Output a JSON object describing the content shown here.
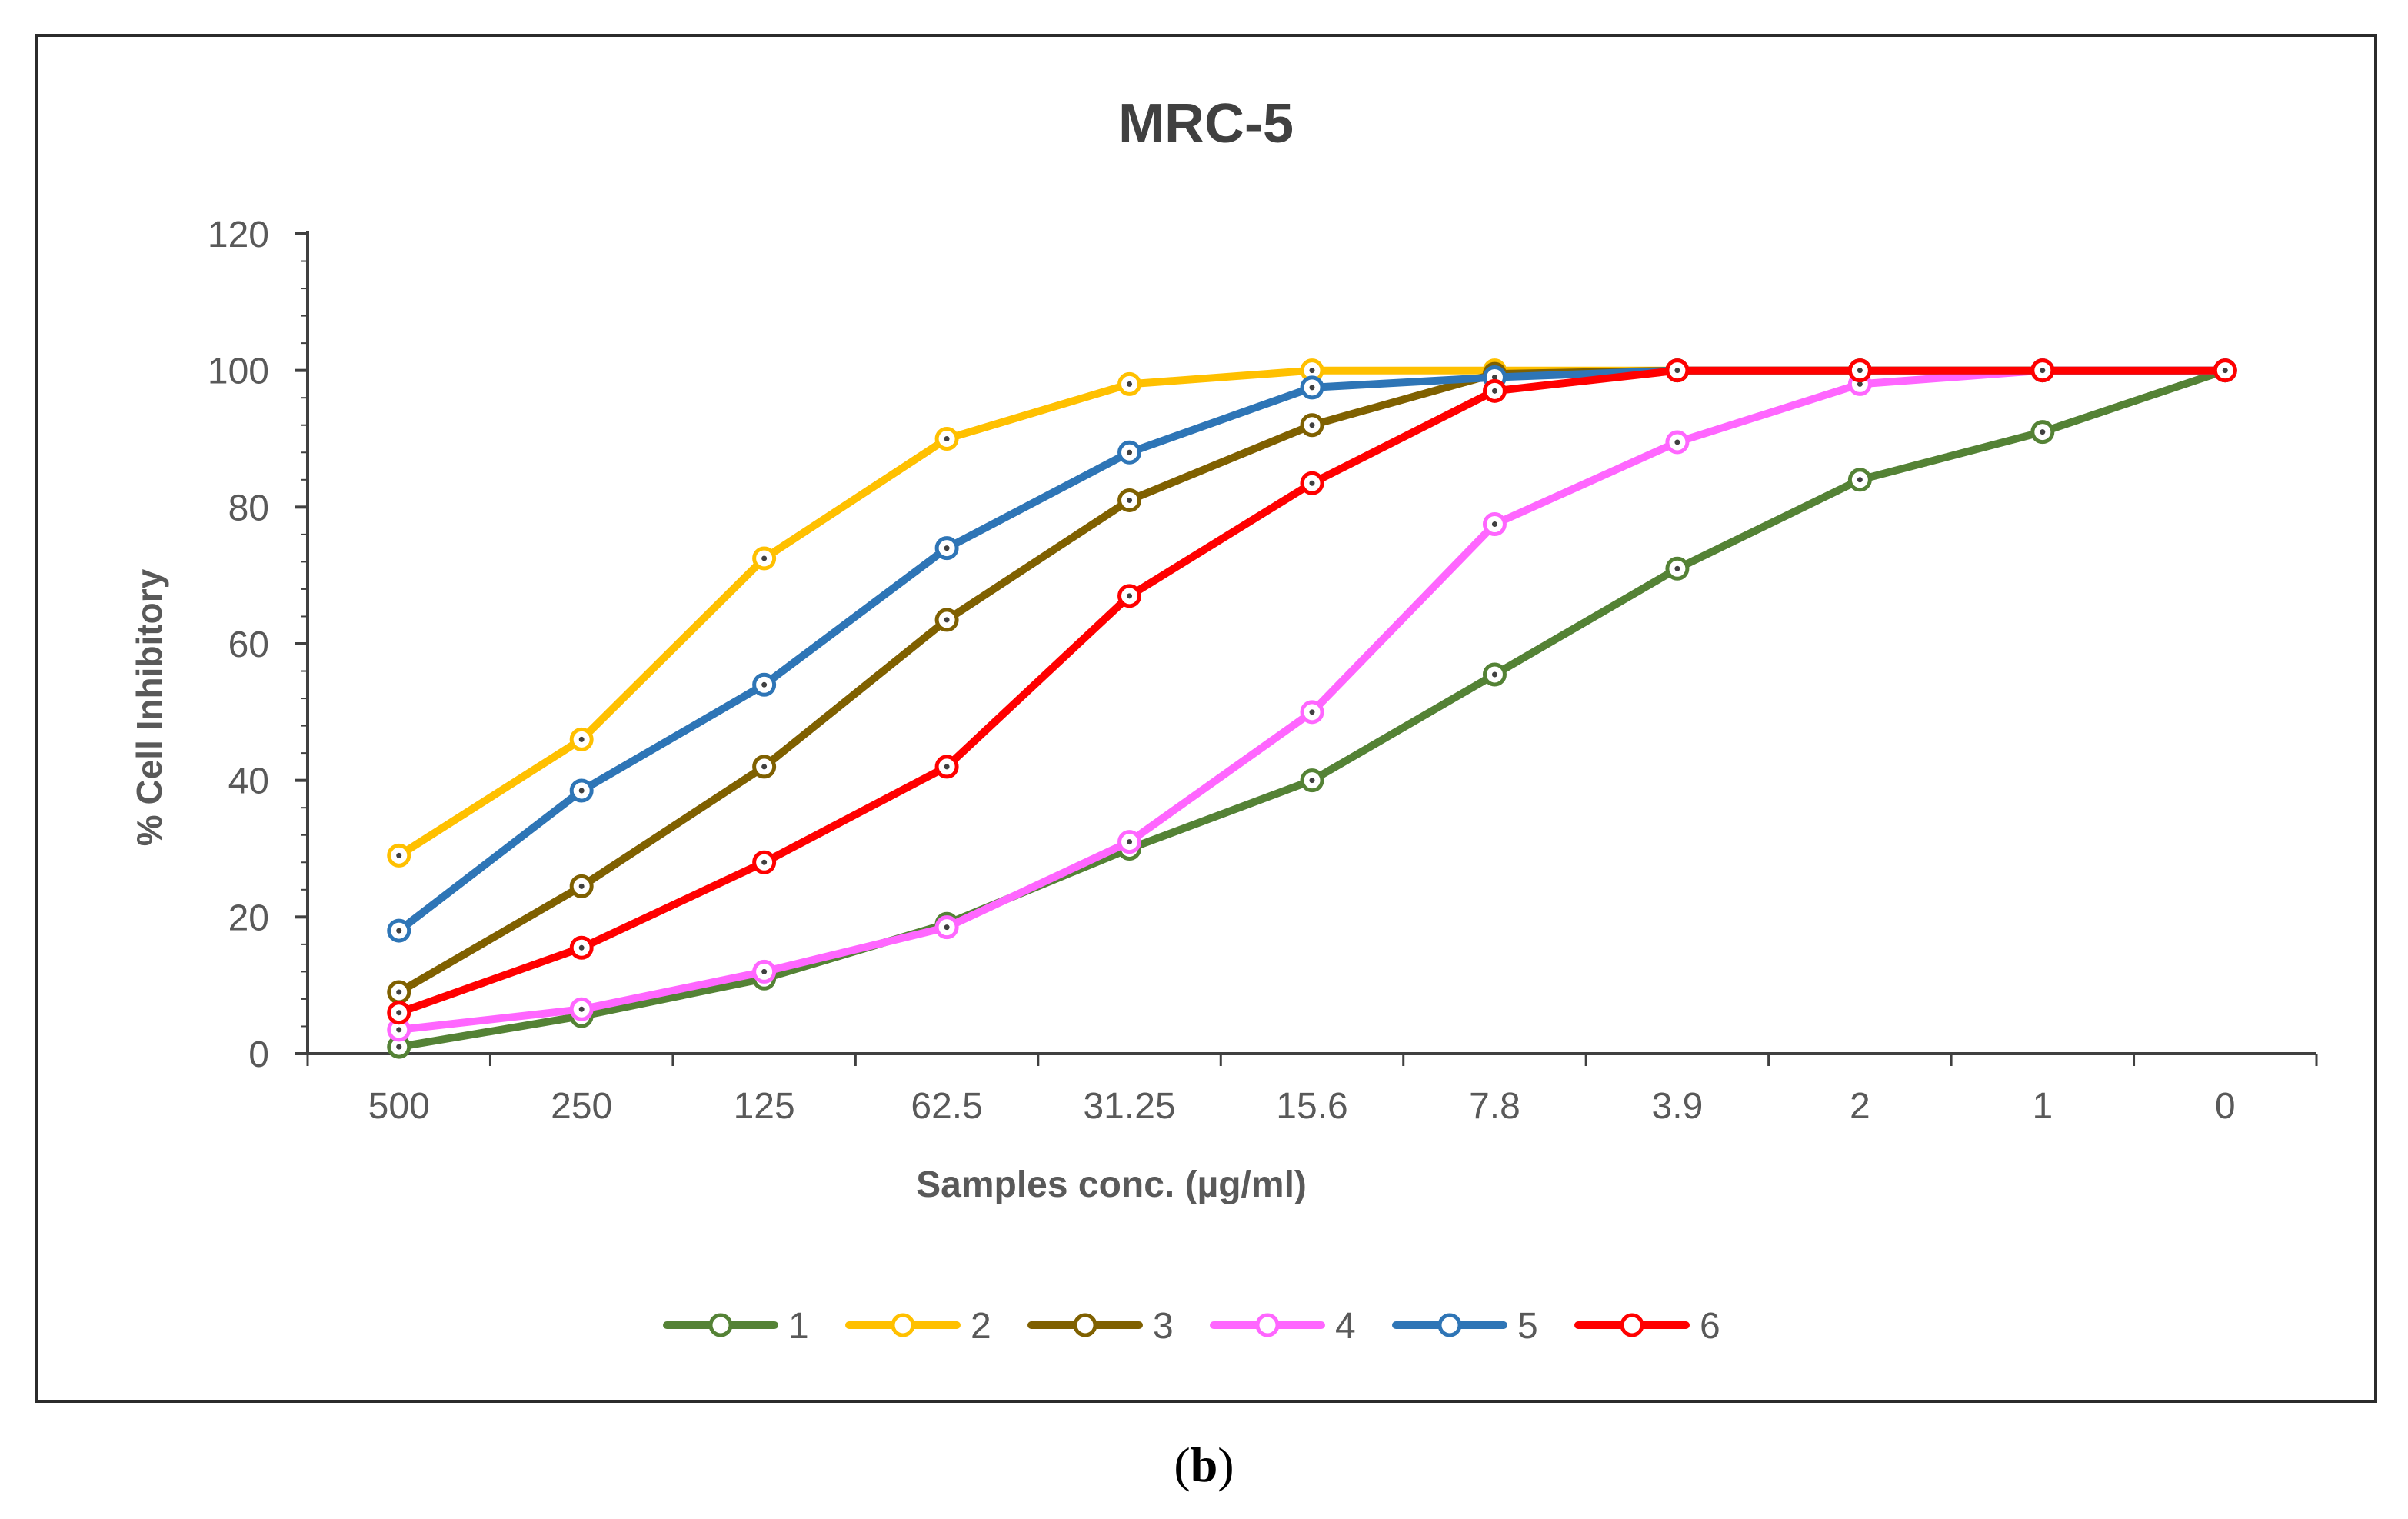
{
  "subfigure_label": "b",
  "chart_data": {
    "type": "line",
    "title": "MRC-5",
    "xlabel": "Samples conc. (µg/ml)",
    "ylabel": "% Cell Inhibitory",
    "categories": [
      "500",
      "250",
      "125",
      "62.5",
      "31.25",
      "15.6",
      "7.8",
      "3.9",
      "2",
      "1",
      "0"
    ],
    "ylim": [
      0,
      120
    ],
    "yticks": [
      0,
      20,
      40,
      60,
      80,
      100,
      120
    ],
    "grid": false,
    "legend_position": "bottom",
    "series": [
      {
        "name": "1",
        "color": "#548235",
        "values": [
          1,
          5.5,
          11,
          19,
          30,
          40,
          55.5,
          71,
          84,
          91,
          100
        ]
      },
      {
        "name": "2",
        "color": "#FFC000",
        "values": [
          29,
          46,
          72.5,
          90,
          98,
          100,
          100,
          100,
          100,
          100,
          100
        ]
      },
      {
        "name": "3",
        "color": "#7F6000",
        "values": [
          9,
          24.5,
          42,
          63.5,
          81,
          92,
          99.5,
          100,
          100,
          100,
          100
        ]
      },
      {
        "name": "4",
        "color": "#FF66FF",
        "values": [
          3.5,
          6.5,
          12,
          18.5,
          31,
          50,
          77.5,
          89.5,
          98,
          100,
          100
        ]
      },
      {
        "name": "5",
        "color": "#2E75B6",
        "values": [
          18,
          38.5,
          54,
          74,
          88,
          97.5,
          99,
          100,
          100,
          100,
          100
        ]
      },
      {
        "name": "6",
        "color": "#FF0000",
        "values": [
          6,
          15.5,
          28,
          42,
          67,
          83.5,
          97,
          100,
          100,
          100,
          100
        ]
      }
    ]
  }
}
